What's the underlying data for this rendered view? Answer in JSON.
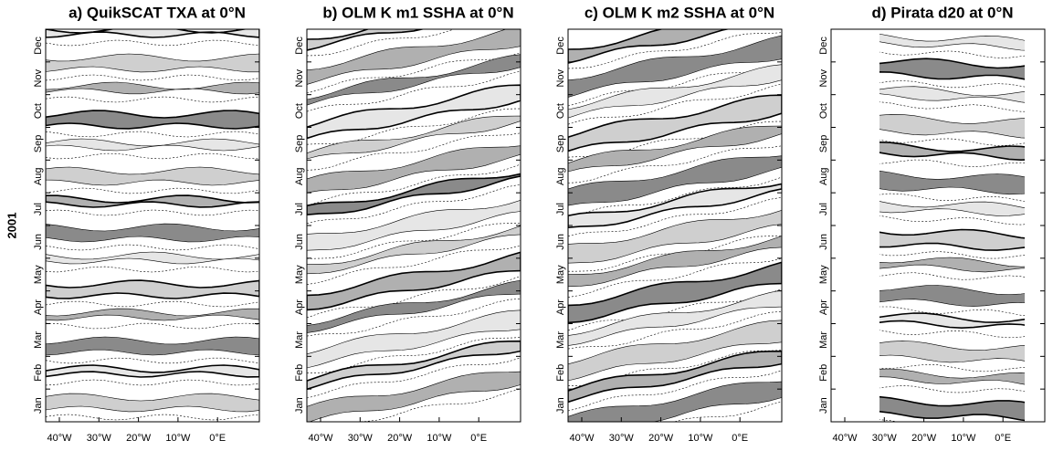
{
  "figure": {
    "y_label": "2001",
    "months": [
      "Jan",
      "Feb",
      "Mar",
      "Apr",
      "May",
      "Jun",
      "Jul",
      "Aug",
      "Sep",
      "Oct",
      "Nov",
      "Dec"
    ],
    "longitudes": [
      "40°W",
      "30°W",
      "20°W",
      "10°W",
      "0°E"
    ],
    "panels": [
      {
        "title": "a) QuikSCAT TXA at 0°N"
      },
      {
        "title": "b) OLM K m1 SSHA at 0°N"
      },
      {
        "title": "c) OLM K m2 SSHA at 0°N"
      },
      {
        "title": "d) Pirata d20 at 0°N"
      }
    ]
  }
}
